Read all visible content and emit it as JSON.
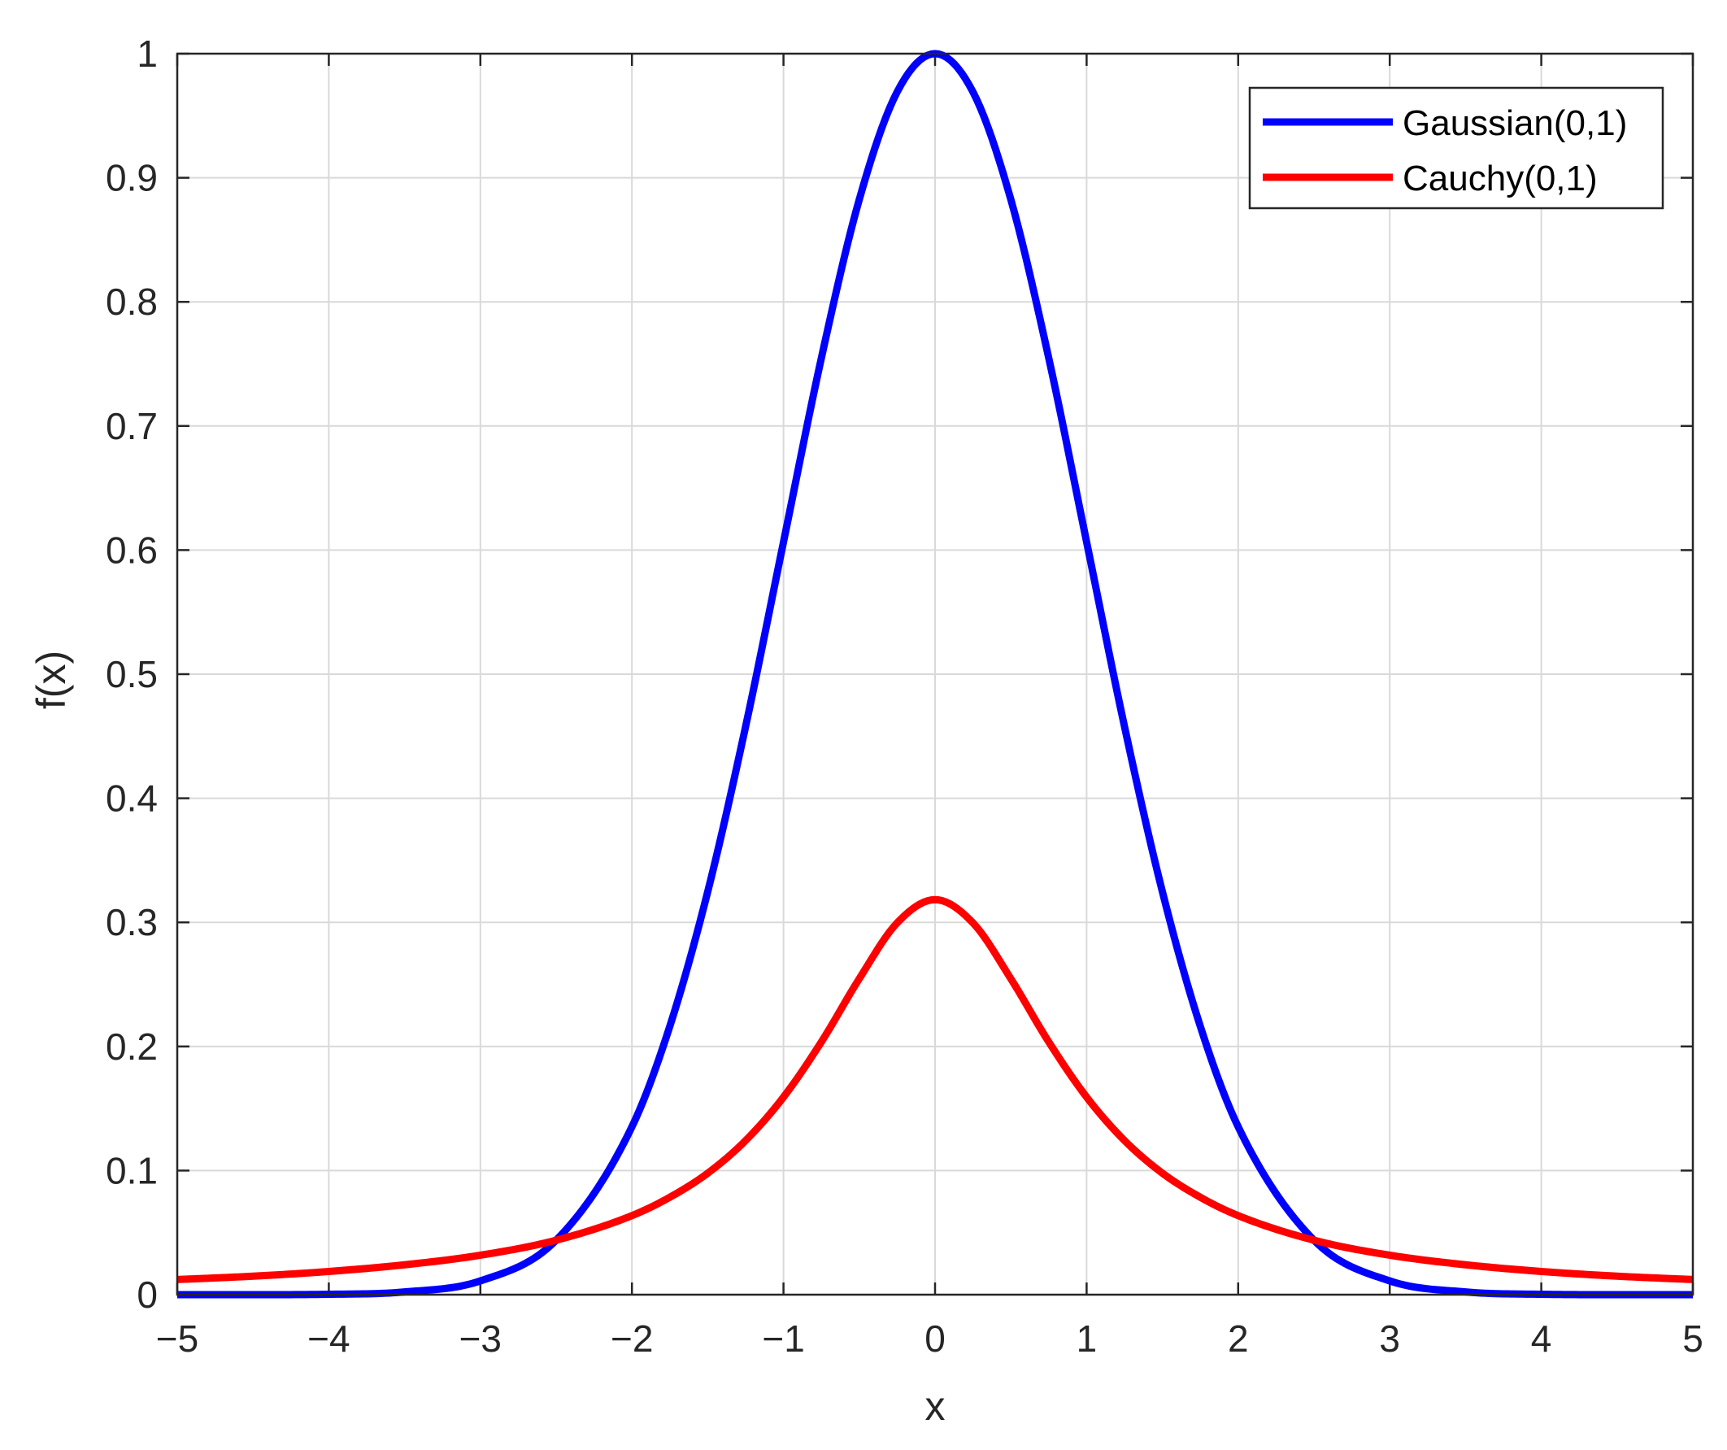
{
  "chart_data": {
    "type": "line",
    "title": "",
    "xlabel": "x",
    "ylabel": "f(x)",
    "xlim": [
      -5,
      5
    ],
    "ylim": [
      0,
      1
    ],
    "xticks": [
      -5,
      -4,
      -3,
      -2,
      -1,
      0,
      1,
      2,
      3,
      4,
      5
    ],
    "xtick_labels": [
      "−5",
      "−4",
      "−3",
      "−2",
      "−1",
      "0",
      "1",
      "2",
      "3",
      "4",
      "5"
    ],
    "yticks": [
      0,
      0.1,
      0.2,
      0.3,
      0.4,
      0.5,
      0.6,
      0.7,
      0.8,
      0.9,
      1
    ],
    "ytick_labels": [
      "0",
      "0.1",
      "0.2",
      "0.3",
      "0.4",
      "0.5",
      "0.6",
      "0.7",
      "0.8",
      "0.9",
      "1"
    ],
    "grid": true,
    "legend_position": "top-right",
    "x": [
      -5,
      -4.5,
      -4,
      -3.5,
      -3,
      -2.5,
      -2,
      -1.75,
      -1.5,
      -1.25,
      -1,
      -0.75,
      -0.5,
      -0.25,
      0,
      0.25,
      0.5,
      0.75,
      1,
      1.25,
      1.5,
      1.75,
      2,
      2.5,
      3,
      3.5,
      4,
      4.5,
      5
    ],
    "series": [
      {
        "name": "Gaussian(0,1)",
        "color": "#0000ff",
        "values": [
          0.0,
          0.0,
          0.0003,
          0.0022,
          0.0111,
          0.0439,
          0.1353,
          0.2163,
          0.3247,
          0.4578,
          0.6065,
          0.7548,
          0.8825,
          0.9692,
          1.0,
          0.9692,
          0.8825,
          0.7548,
          0.6065,
          0.4578,
          0.3247,
          0.2163,
          0.1353,
          0.0439,
          0.0111,
          0.0022,
          0.0003,
          0.0,
          0.0
        ]
      },
      {
        "name": "Cauchy(0,1)",
        "color": "#ff0000",
        "values": [
          0.0122,
          0.0149,
          0.0187,
          0.0241,
          0.0318,
          0.0439,
          0.0637,
          0.0785,
          0.0979,
          0.1242,
          0.1592,
          0.2037,
          0.2546,
          0.2996,
          0.3183,
          0.2996,
          0.2546,
          0.2037,
          0.1592,
          0.1242,
          0.0979,
          0.0785,
          0.0637,
          0.0439,
          0.0318,
          0.0241,
          0.0187,
          0.0149,
          0.0122
        ]
      }
    ]
  }
}
